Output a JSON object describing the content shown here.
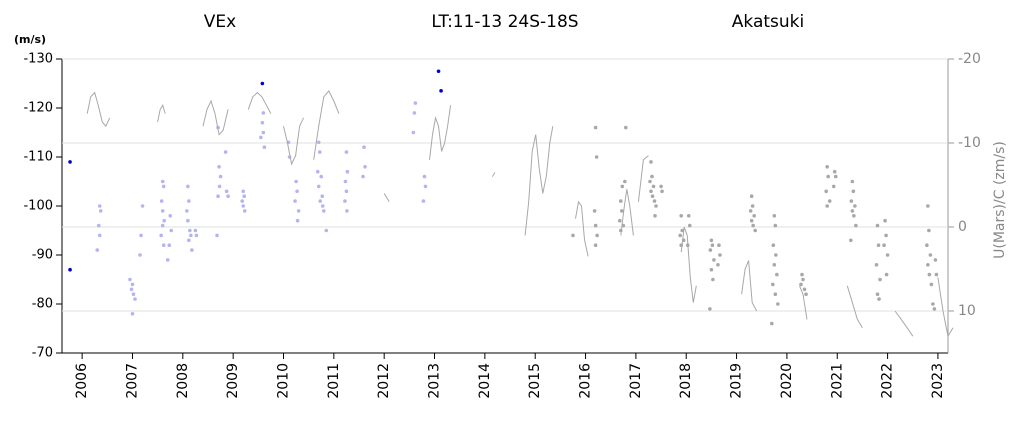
{
  "chart_data": {
    "type": "scatter",
    "title": "LT:11-13   24S-18S",
    "y_label": "(m/s)",
    "y2_label": "U(Mars)/C (zm/s)",
    "xlim": [
      2005.6,
      2023.2
    ],
    "xticks": [
      2006,
      2007,
      2008,
      2009,
      2010,
      2011,
      2012,
      2013,
      2014,
      2015,
      2016,
      2017,
      2018,
      2019,
      2020,
      2021,
      2022,
      2023
    ],
    "ylim": [
      -70,
      -130
    ],
    "yticks": [
      -130,
      -120,
      -110,
      -100,
      -90,
      -80,
      -70
    ],
    "y2lim": [
      15,
      -20
    ],
    "y2ticks": [
      -20,
      -10,
      0,
      10
    ],
    "grid": "y2",
    "series": [
      {
        "name": "VEx",
        "color": "#0000cc",
        "x": [
          2005.76,
          2005.76,
          2009.58,
          2013.08,
          2013.13
        ],
        "values": [
          -87,
          -109,
          -125,
          -127.5,
          -123.5
        ]
      },
      {
        "color": "#b4b4f2",
        "x": [
          2006.35,
          2006.37,
          2006.33,
          2006.35,
          2006.3,
          2006.95,
          2007.0,
          2006.98,
          2007.02,
          2007.05,
          2007.0,
          2007.15,
          2007.17,
          2007.2,
          2007.6,
          2007.62,
          2007.58,
          2007.6,
          2007.63,
          2007.6,
          2007.57,
          2007.62,
          2007.7,
          2007.75,
          2007.77,
          2007.73,
          2008.1,
          2008.12,
          2008.08,
          2008.1,
          2008.14,
          2008.16,
          2008.12,
          2008.18,
          2008.25,
          2008.27,
          2008.7,
          2008.72,
          2008.75,
          2008.73,
          2008.7,
          2008.68,
          2008.85,
          2008.87,
          2008.9,
          2009.2,
          2009.22,
          2009.18,
          2009.2,
          2009.23,
          2009.58,
          2009.6,
          2009.55,
          2009.62,
          2009.6,
          2010.1,
          2010.12,
          2010.25,
          2010.27,
          2010.23,
          2010.3,
          2010.28,
          2010.7,
          2010.72,
          2010.68,
          2010.75,
          2010.7,
          2010.77,
          2010.73,
          2010.8,
          2010.85,
          2010.78,
          2011.25,
          2011.27,
          2011.23,
          2011.25,
          2011.22,
          2011.26,
          2011.6,
          2011.62,
          2011.58,
          2012.6,
          2012.62,
          2012.58,
          2012.8,
          2012.82,
          2012.78
        ],
        "values": [
          -100,
          -99,
          -96,
          -94,
          -91,
          -85,
          -84,
          -83,
          -82,
          -81,
          -78,
          -90,
          -94,
          -100,
          -105,
          -104,
          -101,
          -99,
          -97,
          -96,
          -94,
          -92,
          -89,
          -98,
          -95,
          -92,
          -104,
          -101,
          -99,
          -97,
          -95,
          -94,
          -93,
          -91,
          -95,
          -94,
          -116,
          -108,
          -106,
          -104,
          -102,
          -94,
          -111,
          -103,
          -102,
          -103,
          -102,
          -101,
          -100,
          -99,
          -117,
          -115,
          -114,
          -112,
          -119,
          -113,
          -110,
          -105,
          -103,
          -101,
          -99,
          -97,
          -113,
          -111,
          -107,
          -106,
          -104,
          -102,
          -101,
          -99,
          -95,
          -100,
          -111,
          -107,
          -105,
          -103,
          -101,
          -99,
          -112,
          -108,
          -106,
          -119,
          -121,
          -115,
          -106,
          -104,
          -101
        ]
      },
      {
        "name": "Akatsuki",
        "color": "#a8a8a8",
        "x": [
          2015.75,
          2016.2,
          2016.22,
          2016.18,
          2016.2,
          2016.23,
          2016.2,
          2016.7,
          2016.72,
          2016.68,
          2016.75,
          2016.7,
          2016.73,
          2016.78,
          2016.8,
          2017.3,
          2017.32,
          2017.28,
          2017.35,
          2017.3,
          2017.33,
          2017.37,
          2017.4,
          2017.38,
          2017.5,
          2017.52,
          2017.9,
          2017.92,
          2017.88,
          2017.95,
          2017.9,
          2018.05,
          2018.07,
          2018.03,
          2018.5,
          2018.52,
          2018.48,
          2018.55,
          2018.5,
          2018.53,
          2018.47,
          2018.65,
          2018.67,
          2018.63,
          2019.3,
          2019.32,
          2019.28,
          2019.35,
          2019.3,
          2019.33,
          2019.37,
          2019.75,
          2019.77,
          2019.73,
          2019.78,
          2019.75,
          2019.8,
          2019.72,
          2019.77,
          2019.82,
          2019.7,
          2020.3,
          2020.32,
          2020.28,
          2020.35,
          2020.38,
          2020.8,
          2020.82,
          2020.78,
          2020.85,
          2020.8,
          2020.95,
          2020.97,
          2020.93,
          2021.3,
          2021.32,
          2021.28,
          2021.35,
          2021.3,
          2021.33,
          2021.37,
          2021.27,
          2021.8,
          2021.82,
          2021.78,
          2021.85,
          2021.8,
          2021.83,
          2021.95,
          2021.97,
          2021.93,
          2022.0,
          2021.98,
          2022.8,
          2022.82,
          2022.78,
          2022.85,
          2022.8,
          2022.83,
          2022.87,
          2022.9,
          2022.95,
          2022.97,
          2022.93
        ],
        "values": [
          -94,
          -116,
          -110,
          -99,
          -96,
          -94,
          -92,
          -101,
          -99,
          -97,
          -96,
          -95,
          -104,
          -105,
          -116,
          -109,
          -106,
          -105,
          -104,
          -103,
          -102,
          -101,
          -100,
          -98,
          -104,
          -103,
          -98,
          -95,
          -94,
          -93,
          -92,
          -98,
          -96,
          -92,
          -93,
          -92,
          -91,
          -89,
          -87,
          -85,
          -79,
          -92,
          -90,
          -88,
          -102,
          -100,
          -99,
          -98,
          -97,
          -96,
          -95,
          -98,
          -96,
          -92,
          -90,
          -88,
          -86,
          -84,
          -82,
          -80,
          -76,
          -86,
          -85,
          -84,
          -83,
          -82,
          -108,
          -106,
          -103,
          -101,
          -100,
          -107,
          -106,
          -104,
          -105,
          -103,
          -101,
          -100,
          -99,
          -98,
          -96,
          -93,
          -96,
          -92,
          -88,
          -85,
          -82,
          -81,
          -97,
          -94,
          -92,
          -90,
          -86,
          -100,
          -95,
          -92,
          -90,
          -88,
          -86,
          -84,
          -80,
          -89,
          -86,
          -79
        ]
      },
      {
        "type": "line",
        "axis": "y2",
        "color": "#a8a8a8",
        "x": [
          2006.1,
          2006.17,
          2006.25,
          2006.32,
          2006.4,
          2006.47,
          2006.55,
          2006.6,
          2007.5,
          2007.55,
          2007.6,
          2007.65,
          2007.7,
          2008.4,
          2008.48,
          2008.56,
          2008.64,
          2008.72,
          2008.8,
          2008.9,
          2008.95,
          2009.3,
          2009.39,
          2009.48,
          2009.57,
          2009.66,
          2009.75,
          2009.8,
          2010.0,
          2010.08,
          2010.16,
          2010.24,
          2010.32,
          2010.4,
          2010.45,
          2010.6,
          2010.7,
          2010.8,
          2010.9,
          2011.0,
          2011.1,
          2011.15,
          2012.0,
          2012.1,
          2012.15,
          2012.9,
          2012.96,
          2013.02,
          2013.08,
          2013.14,
          2013.2,
          2013.26,
          2013.32,
          2013.4,
          2014.15,
          2014.2,
          2014.3,
          2014.8,
          2014.87,
          2014.94,
          2015.01,
          2015.08,
          2015.15,
          2015.22,
          2015.29,
          2015.35,
          2015.4,
          2015.8,
          2015.86,
          2015.92,
          2015.98,
          2016.05,
          2016.1,
          2016.7,
          2016.76,
          2016.82,
          2016.88,
          2016.95,
          2017.0,
          2017.05,
          2017.15,
          2017.25,
          2017.3,
          2017.9,
          2017.96,
          2018.02,
          2018.08,
          2018.14,
          2018.2,
          2018.3,
          2019.1,
          2019.17,
          2019.24,
          2019.31,
          2019.4,
          2019.5,
          2020.25,
          2020.32,
          2020.4,
          2020.5,
          2021.2,
          2021.3,
          2021.4,
          2021.5,
          2021.6,
          2022.15,
          2022.27,
          2022.39,
          2022.5,
          2022.6,
          2023.0,
          2023.1,
          2023.2,
          2023.3
        ],
        "values": [
          -13.5,
          -15.5,
          -16,
          -14.5,
          -12.5,
          -12,
          -13,
          null,
          -12.5,
          -14,
          -14.5,
          -13.5,
          null,
          -12,
          -14,
          -15,
          -13.5,
          -11,
          -11.5,
          -14,
          null,
          -14,
          -15.5,
          -16,
          -15.5,
          -14.5,
          -13.5,
          null,
          -12,
          -10,
          -7.5,
          -8.5,
          -12,
          -13,
          null,
          -8,
          -12,
          -15.5,
          -16.2,
          -15,
          -13.5,
          null,
          -4,
          -3,
          null,
          -8,
          -11,
          -13,
          -12,
          -9,
          -10,
          -12,
          -14.5,
          null,
          -6,
          -6.5,
          null,
          1,
          -3,
          -9,
          -11,
          -7,
          -4,
          -6,
          -10,
          -12,
          null,
          -1,
          -3,
          -2.5,
          1.5,
          3.5,
          null,
          1,
          -2,
          -4.5,
          -2.5,
          1,
          null,
          -3,
          -8,
          -8.5,
          null,
          3,
          0,
          1,
          6,
          9,
          7,
          null,
          8,
          5,
          4,
          9,
          10,
          null,
          7,
          8,
          11,
          null,
          7,
          9,
          11,
          12,
          null,
          10,
          11,
          12,
          13,
          null,
          6,
          10,
          13,
          12
        ]
      }
    ]
  }
}
